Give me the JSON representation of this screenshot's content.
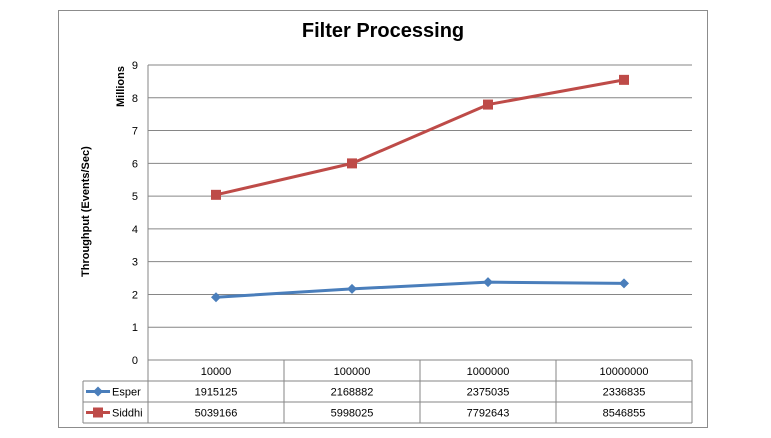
{
  "chart_data": {
    "type": "line",
    "title": "Filter Processing",
    "ylabel": "Throughput (Events/Sec)",
    "yunit": "Millions",
    "ylim": [
      0,
      9
    ],
    "yticks": [
      0,
      1,
      2,
      3,
      4,
      5,
      6,
      7,
      8,
      9
    ],
    "grid": true,
    "legend": "data-table",
    "categories": [
      "10000",
      "100000",
      "1000000",
      "10000000"
    ],
    "series": [
      {
        "name": "Esper",
        "color": "#4a7ebb",
        "marker": "diamond",
        "values": [
          1915125,
          2168882,
          2375035,
          2336835
        ],
        "labels": [
          "1915125",
          "2168882",
          "2375035",
          "2336835"
        ]
      },
      {
        "name": "Siddhi",
        "color": "#be4b48",
        "marker": "square",
        "values": [
          5039166,
          5998025,
          7792643,
          8546855
        ],
        "labels": [
          "5039166",
          "5998025",
          "7792643",
          "8546855"
        ]
      }
    ]
  }
}
